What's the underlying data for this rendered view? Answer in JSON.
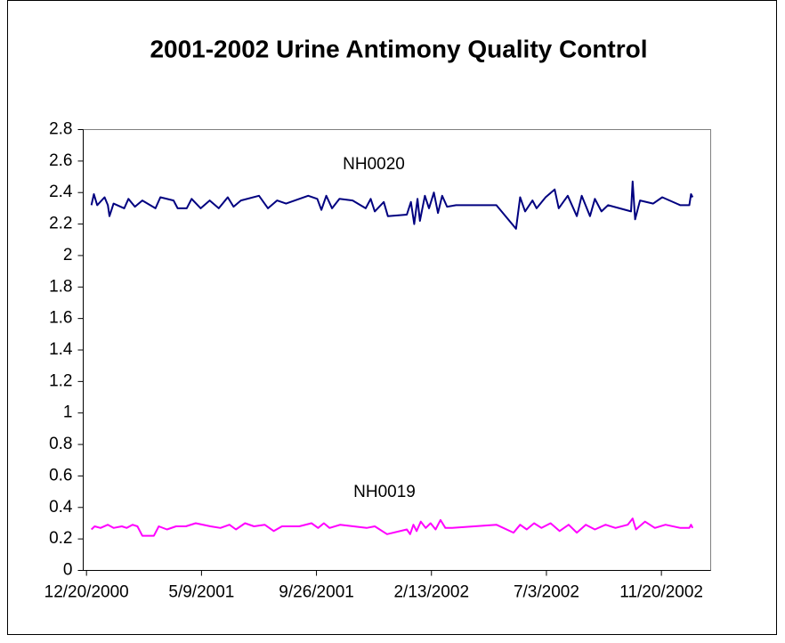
{
  "chart_data": {
    "type": "line",
    "title": "2001-2002 Urine Antimony Quality Control",
    "annotations": [
      "NH0020",
      "NH0019"
    ],
    "xlim": [
      "2000-12-16",
      "2003-01-19"
    ],
    "xticks": [
      {
        "value": "2000-12-20",
        "label": "12/20/2000"
      },
      {
        "value": "2001-05-09",
        "label": "5/9/2001"
      },
      {
        "value": "2001-09-26",
        "label": "9/26/2001"
      },
      {
        "value": "2002-02-13",
        "label": "2/13/2002"
      },
      {
        "value": "2002-07-03",
        "label": "7/3/2002"
      },
      {
        "value": "2002-11-20",
        "label": "11/20/2002"
      }
    ],
    "ylim": [
      0,
      2.8
    ],
    "yticks": [
      0,
      0.2,
      0.4,
      0.6,
      0.8,
      1,
      1.2,
      1.4,
      1.6,
      1.8,
      2,
      2.2,
      2.4,
      2.6,
      2.8
    ],
    "series": [
      {
        "name": "NH0020",
        "color": "#000080",
        "x": [
          "2000-12-26",
          "2000-12-29",
          "2001-01-02",
          "2001-01-11",
          "2001-01-15",
          "2001-01-17",
          "2001-01-22",
          "2001-02-04",
          "2001-02-09",
          "2001-02-17",
          "2001-02-26",
          "2001-03-14",
          "2001-03-20",
          "2001-04-05",
          "2001-04-10",
          "2001-04-21",
          "2001-04-27",
          "2001-05-08",
          "2001-05-19",
          "2001-05-30",
          "2001-06-10",
          "2001-06-17",
          "2001-06-26",
          "2001-07-18",
          "2001-07-29",
          "2001-08-09",
          "2001-08-20",
          "2001-09-16",
          "2001-09-27",
          "2001-10-02",
          "2001-10-08",
          "2001-10-15",
          "2001-10-24",
          "2001-11-09",
          "2001-11-25",
          "2001-12-01",
          "2001-12-06",
          "2001-12-17",
          "2001-12-22",
          "2002-01-14",
          "2002-01-19",
          "2002-01-23",
          "2002-01-27",
          "2002-01-30",
          "2002-02-05",
          "2002-02-10",
          "2002-02-16",
          "2002-02-21",
          "2002-02-26",
          "2002-03-04",
          "2002-03-15",
          "2002-05-03",
          "2002-05-27",
          "2002-06-01",
          "2002-06-07",
          "2002-06-16",
          "2002-06-21",
          "2002-07-02",
          "2002-07-13",
          "2002-07-18",
          "2002-07-29",
          "2002-08-09",
          "2002-08-15",
          "2002-08-25",
          "2002-08-31",
          "2002-09-08",
          "2002-09-16",
          "2002-10-14",
          "2002-10-16",
          "2002-10-19",
          "2002-10-25",
          "2002-11-10",
          "2002-11-21",
          "2002-12-13",
          "2002-12-24",
          "2002-12-26",
          "2002-12-28"
        ],
        "values": [
          2.32,
          2.39,
          2.32,
          2.37,
          2.32,
          2.25,
          2.33,
          2.3,
          2.36,
          2.31,
          2.35,
          2.3,
          2.37,
          2.35,
          2.3,
          2.3,
          2.36,
          2.3,
          2.35,
          2.3,
          2.37,
          2.31,
          2.35,
          2.38,
          2.3,
          2.35,
          2.33,
          2.38,
          2.36,
          2.29,
          2.38,
          2.3,
          2.36,
          2.35,
          2.3,
          2.36,
          2.28,
          2.34,
          2.25,
          2.26,
          2.34,
          2.2,
          2.36,
          2.22,
          2.38,
          2.3,
          2.4,
          2.27,
          2.38,
          2.31,
          2.32,
          2.32,
          2.17,
          2.37,
          2.28,
          2.35,
          2.3,
          2.37,
          2.42,
          2.3,
          2.38,
          2.25,
          2.38,
          2.25,
          2.36,
          2.28,
          2.32,
          2.28,
          2.47,
          2.23,
          2.35,
          2.33,
          2.37,
          2.32,
          2.32,
          2.39,
          2.37
        ]
      },
      {
        "name": "NH0019",
        "color": "#ff00ff",
        "x": [
          "2000-12-26",
          "2000-12-30",
          "2001-01-06",
          "2001-01-15",
          "2001-01-22",
          "2001-02-01",
          "2001-02-07",
          "2001-02-14",
          "2001-02-20",
          "2001-02-26",
          "2001-03-12",
          "2001-03-18",
          "2001-03-28",
          "2001-04-08",
          "2001-04-20",
          "2001-05-02",
          "2001-05-20",
          "2001-06-01",
          "2001-06-12",
          "2001-06-20",
          "2001-07-01",
          "2001-07-12",
          "2001-07-25",
          "2001-08-05",
          "2001-08-15",
          "2001-09-05",
          "2001-09-20",
          "2001-09-28",
          "2001-10-05",
          "2001-10-12",
          "2001-10-25",
          "2001-11-10",
          "2001-11-26",
          "2001-12-06",
          "2001-12-21",
          "2002-01-14",
          "2002-01-18",
          "2002-01-22",
          "2002-01-26",
          "2002-01-31",
          "2002-02-06",
          "2002-02-12",
          "2002-02-18",
          "2002-02-24",
          "2002-03-02",
          "2002-03-10",
          "2002-05-03",
          "2002-05-24",
          "2002-06-01",
          "2002-06-09",
          "2002-06-18",
          "2002-06-27",
          "2002-07-08",
          "2002-07-19",
          "2002-07-30",
          "2002-08-09",
          "2002-08-20",
          "2002-08-31",
          "2002-09-13",
          "2002-09-25",
          "2002-10-10",
          "2002-10-16",
          "2002-10-20",
          "2002-10-31",
          "2002-11-12",
          "2002-11-25",
          "2002-12-13",
          "2002-12-24",
          "2002-12-26",
          "2002-12-28"
        ],
        "values": [
          0.26,
          0.28,
          0.27,
          0.29,
          0.27,
          0.28,
          0.27,
          0.29,
          0.28,
          0.22,
          0.22,
          0.28,
          0.26,
          0.28,
          0.28,
          0.3,
          0.28,
          0.27,
          0.29,
          0.26,
          0.3,
          0.28,
          0.29,
          0.25,
          0.28,
          0.28,
          0.3,
          0.27,
          0.3,
          0.27,
          0.29,
          0.28,
          0.27,
          0.28,
          0.23,
          0.26,
          0.23,
          0.29,
          0.25,
          0.31,
          0.27,
          0.3,
          0.26,
          0.32,
          0.27,
          0.27,
          0.29,
          0.24,
          0.29,
          0.26,
          0.3,
          0.27,
          0.3,
          0.25,
          0.29,
          0.24,
          0.29,
          0.26,
          0.29,
          0.27,
          0.29,
          0.33,
          0.26,
          0.31,
          0.27,
          0.29,
          0.27,
          0.27,
          0.29,
          0.27
        ]
      }
    ]
  }
}
